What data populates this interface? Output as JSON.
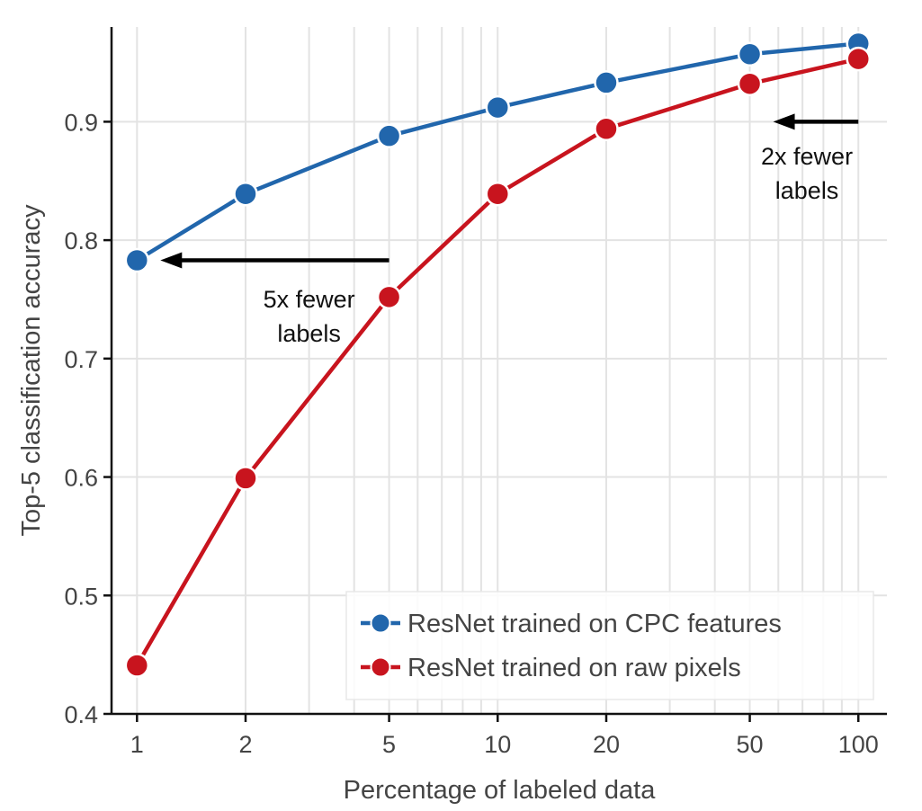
{
  "chart_data": {
    "type": "line",
    "title": "",
    "xlabel": "Percentage of labeled data",
    "ylabel": "Top-5 classification accuracy",
    "xscale": "log",
    "xlim": [
      0.85,
      120
    ],
    "ylim": [
      0.4,
      0.98
    ],
    "x_ticks": [
      1,
      2,
      5,
      10,
      20,
      50,
      100
    ],
    "x_tick_labels": [
      "1",
      "2",
      "5",
      "10",
      "20",
      "50",
      "100"
    ],
    "y_ticks": [
      0.4,
      0.5,
      0.6,
      0.7,
      0.8,
      0.9
    ],
    "y_tick_labels": [
      "0.4",
      "0.5",
      "0.6",
      "0.7",
      "0.8",
      "0.9"
    ],
    "grid": true,
    "legend_position": "bottom-right",
    "x": [
      1,
      2,
      5,
      10,
      20,
      50,
      100
    ],
    "series": [
      {
        "name": "ResNet trained on CPC features",
        "color": "#2166ac",
        "values": [
          0.783,
          0.839,
          0.888,
          0.912,
          0.933,
          0.957,
          0.966
        ]
      },
      {
        "name": "ResNet trained on raw pixels",
        "color": "#c8141e",
        "values": [
          0.441,
          0.599,
          0.752,
          0.839,
          0.894,
          0.932,
          0.953
        ]
      }
    ],
    "annotations": [
      {
        "lines": [
          "5x fewer",
          "labels"
        ],
        "arrow_from": [
          5,
          0.783
        ],
        "arrow_to": [
          1,
          0.783
        ],
        "text_x": 3,
        "text_y": 0.743
      },
      {
        "lines": [
          "2x fewer",
          "labels"
        ],
        "arrow_from": [
          100,
          0.9
        ],
        "arrow_to": [
          50,
          0.9
        ],
        "text_x": 72,
        "text_y": 0.864
      }
    ]
  }
}
